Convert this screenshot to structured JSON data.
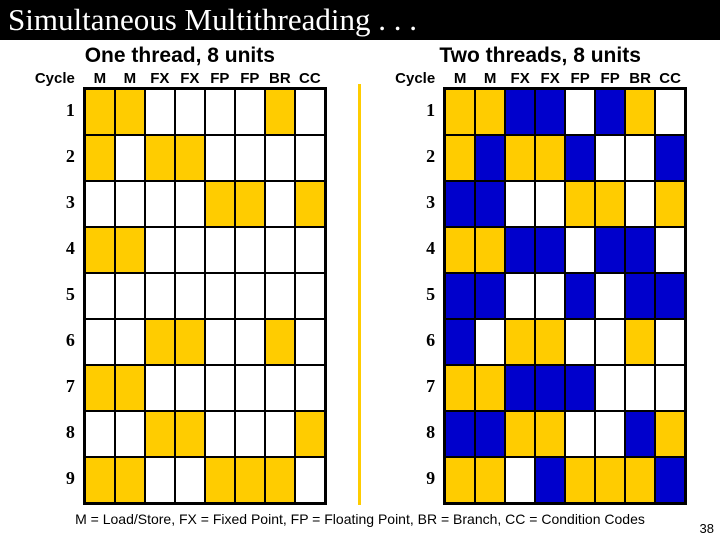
{
  "title": "Simultaneous Multithreading . . .",
  "left": {
    "subtitle": "One thread, 8 units",
    "cycle_label": "Cycle",
    "columns": [
      "M",
      "M",
      "FX",
      "FX",
      "FP",
      "FP",
      "BR",
      "CC"
    ],
    "rows": [
      {
        "num": "1",
        "cells": [
          "y",
          "y",
          "w",
          "w",
          "w",
          "w",
          "y",
          "w"
        ]
      },
      {
        "num": "2",
        "cells": [
          "y",
          "w",
          "y",
          "y",
          "w",
          "w",
          "w",
          "w"
        ]
      },
      {
        "num": "3",
        "cells": [
          "w",
          "w",
          "w",
          "w",
          "y",
          "y",
          "w",
          "y"
        ]
      },
      {
        "num": "4",
        "cells": [
          "y",
          "y",
          "w",
          "w",
          "w",
          "w",
          "w",
          "w"
        ]
      },
      {
        "num": "5",
        "cells": [
          "w",
          "w",
          "w",
          "w",
          "w",
          "w",
          "w",
          "w"
        ]
      },
      {
        "num": "6",
        "cells": [
          "w",
          "w",
          "y",
          "y",
          "w",
          "w",
          "y",
          "w"
        ]
      },
      {
        "num": "7",
        "cells": [
          "y",
          "y",
          "w",
          "w",
          "w",
          "w",
          "w",
          "w"
        ]
      },
      {
        "num": "8",
        "cells": [
          "w",
          "w",
          "y",
          "y",
          "w",
          "w",
          "w",
          "y"
        ]
      },
      {
        "num": "9",
        "cells": [
          "y",
          "y",
          "w",
          "w",
          "y",
          "y",
          "y",
          "w"
        ]
      }
    ]
  },
  "right": {
    "subtitle": "Two threads, 8 units",
    "cycle_label": "Cycle",
    "columns": [
      "M",
      "M",
      "FX",
      "FX",
      "FP",
      "FP",
      "BR",
      "CC"
    ],
    "rows": [
      {
        "num": "1",
        "cells": [
          "y",
          "y",
          "b",
          "b",
          "w",
          "b",
          "y",
          "w"
        ]
      },
      {
        "num": "2",
        "cells": [
          "y",
          "b",
          "y",
          "y",
          "b",
          "w",
          "w",
          "b"
        ]
      },
      {
        "num": "3",
        "cells": [
          "b",
          "b",
          "w",
          "w",
          "y",
          "y",
          "w",
          "y"
        ]
      },
      {
        "num": "4",
        "cells": [
          "y",
          "y",
          "b",
          "b",
          "w",
          "b",
          "b",
          "w"
        ]
      },
      {
        "num": "5",
        "cells": [
          "b",
          "b",
          "w",
          "w",
          "b",
          "w",
          "b",
          "b"
        ]
      },
      {
        "num": "6",
        "cells": [
          "b",
          "w",
          "y",
          "y",
          "w",
          "w",
          "y",
          "w"
        ]
      },
      {
        "num": "7",
        "cells": [
          "y",
          "y",
          "b",
          "b",
          "b",
          "w",
          "w",
          "w"
        ]
      },
      {
        "num": "8",
        "cells": [
          "b",
          "b",
          "y",
          "y",
          "w",
          "w",
          "b",
          "y"
        ]
      },
      {
        "num": "9",
        "cells": [
          "y",
          "y",
          "w",
          "b",
          "y",
          "y",
          "y",
          "b"
        ]
      }
    ]
  },
  "colors": {
    "y": "#ffcc00",
    "b": "#0000cc",
    "w": "#ffffff"
  },
  "legend": "M = Load/Store, FX = Fixed Point, FP = Floating Point, BR = Branch, CC = Condition Codes",
  "page_num": "38"
}
